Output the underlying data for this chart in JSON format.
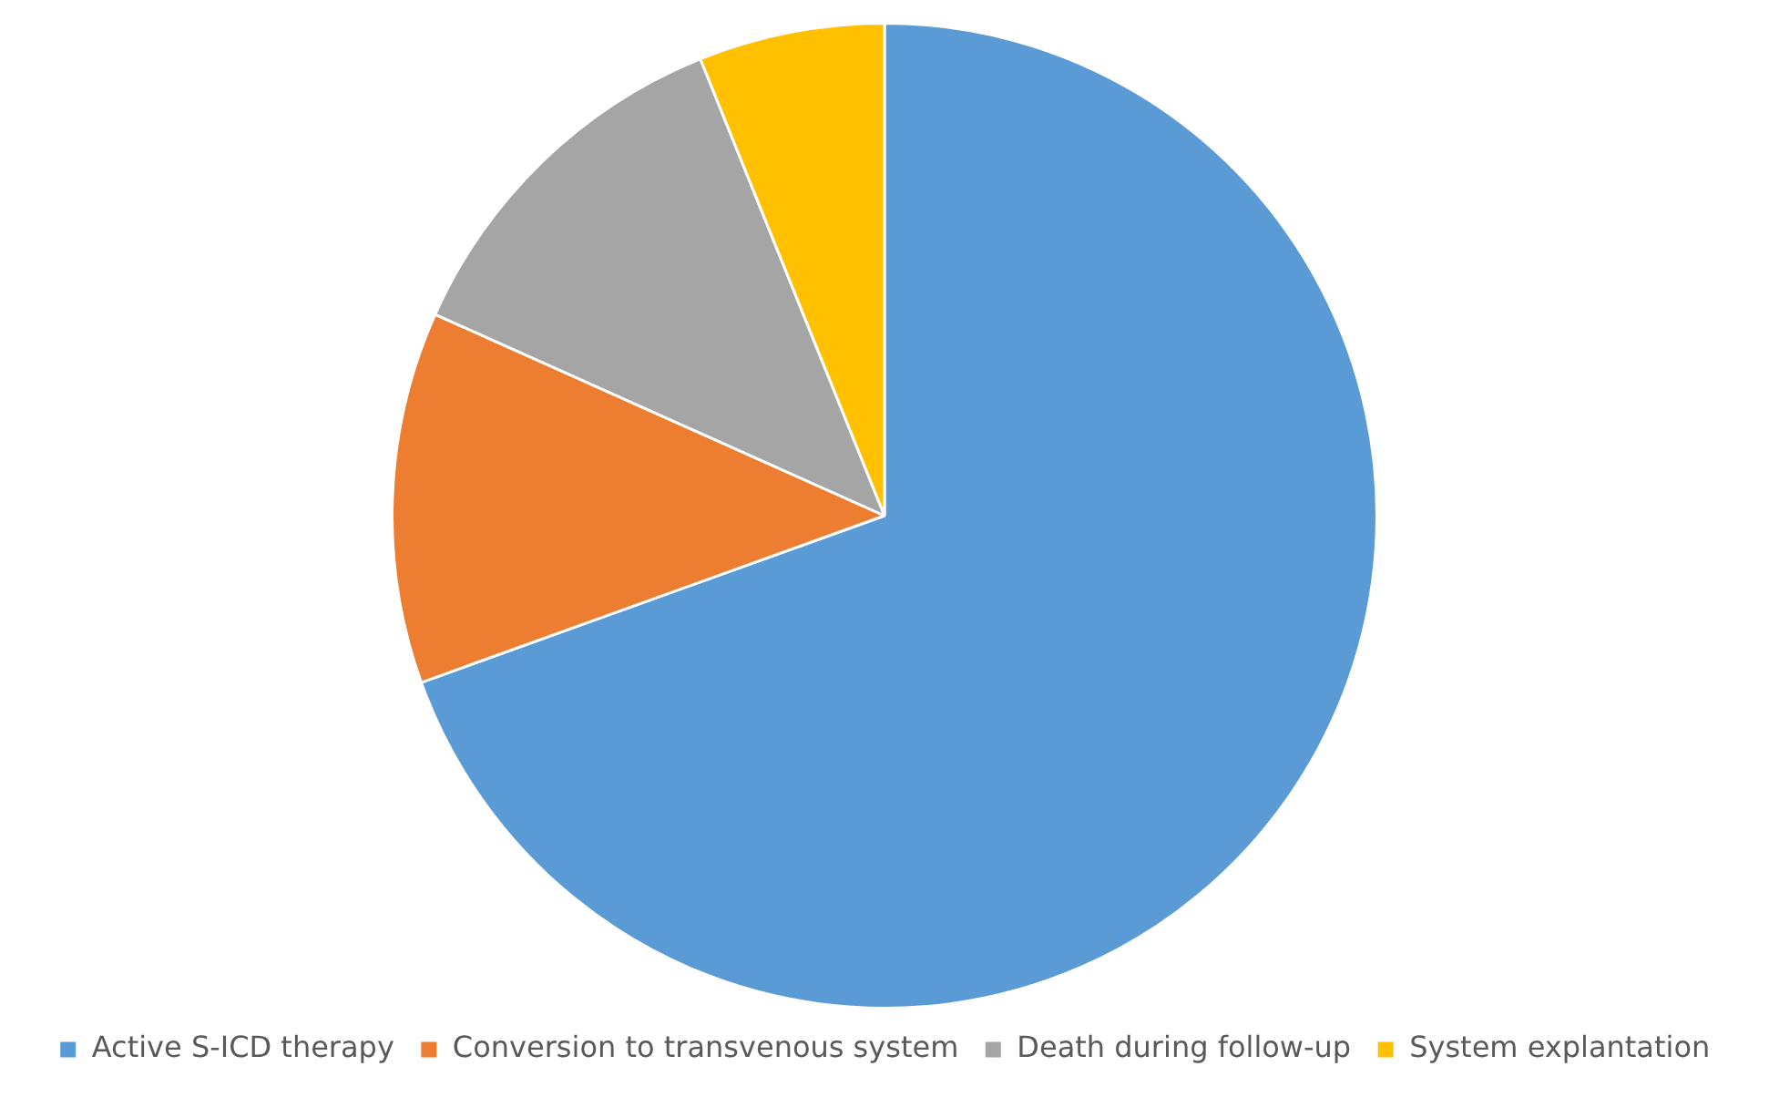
{
  "chart_data": {
    "type": "pie",
    "categories": [
      "Active S-ICD therapy",
      "Conversion to transvenous system",
      "Death during follow-up",
      "System explantation"
    ],
    "values": [
      69.5,
      12.2,
      12.2,
      6.1
    ],
    "colors": [
      "#5b9bd5",
      "#ed7d31",
      "#a5a5a5",
      "#ffc000"
    ],
    "legend": "bottom"
  }
}
